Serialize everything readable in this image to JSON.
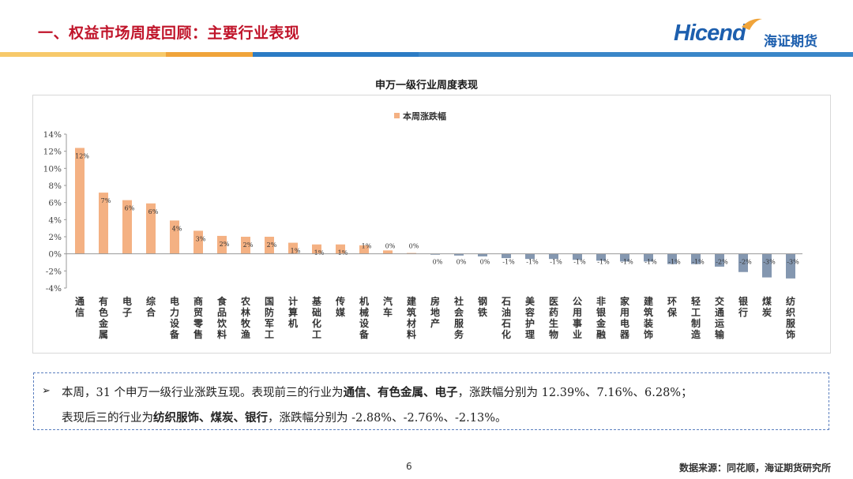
{
  "header": {
    "title": "一、权益市场周度回顾：主要行业表现",
    "logo_word": "Hicend",
    "logo_cn": "海证期货"
  },
  "colors": {
    "title_red": "#c0142a",
    "brand_blue": "#1d5fae",
    "bar_positive": "#f4b183",
    "bar_negative": "#8497b0",
    "rule": [
      "#f7c96a",
      "#f0a43a",
      "#2b7bc4",
      "#3a86c8"
    ]
  },
  "chart_data": {
    "type": "bar",
    "title": "申万一级行业周度表现",
    "legend": [
      "本周涨跌幅"
    ],
    "legend_position": "top-center",
    "y_ticks": [
      "14%",
      "12%",
      "10%",
      "8%",
      "6%",
      "4%",
      "2%",
      "0%",
      "-2%",
      "-4%"
    ],
    "ylim": [
      -4,
      14
    ],
    "grid": false,
    "categories": [
      "通信",
      "有色金属",
      "电子",
      "综合",
      "电力设备",
      "商贸零售",
      "食品饮料",
      "农林牧渔",
      "国防军工",
      "计算机",
      "基础化工",
      "传媒",
      "机械设备",
      "汽车",
      "建筑材料",
      "房地产",
      "社会服务",
      "钢铁",
      "石油石化",
      "美容护理",
      "医药生物",
      "公用事业",
      "非银金融",
      "家用电器",
      "建筑装饰",
      "环保",
      "轻工制造",
      "交通运输",
      "银行",
      "煤炭",
      "纺织服饰"
    ],
    "values": [
      12.39,
      7.16,
      6.28,
      5.9,
      3.9,
      2.7,
      2.1,
      2.0,
      2.0,
      1.3,
      1.1,
      1.1,
      1.0,
      0.4,
      0.1,
      -0.1,
      -0.2,
      -0.3,
      -0.5,
      -0.6,
      -0.6,
      -0.7,
      -0.8,
      -0.9,
      -0.9,
      -1.2,
      -1.2,
      -1.5,
      -2.13,
      -2.76,
      -2.88
    ],
    "data_labels": [
      "12%",
      "7%",
      "6%",
      "6%",
      "4%",
      "3%",
      "2%",
      "2%",
      "2%",
      "1%",
      "1%",
      "1%",
      "1%",
      "0%",
      "0%",
      "0%",
      "0%",
      "0%",
      "-1%",
      "-1%",
      "-1%",
      "-1%",
      "-1%",
      "-1%",
      "-1%",
      "-1%",
      "-1%",
      "-2%",
      "-2%",
      "-3%",
      "-3%"
    ],
    "series": [
      {
        "name": "本周涨跌幅"
      }
    ]
  },
  "summary": {
    "bullet": "➢",
    "line1_a": "本周，31 个申万一级行业涨跌互现。表现前三的行业为",
    "line1_b": "通信、有色金属、电子",
    "line1_c": "，涨跌幅分别为 12.39%、7.16%、6.28%；",
    "line2_a": "表现后三的行业为",
    "line2_b": "纺织服饰、煤炭、银行",
    "line2_c": "，涨跌幅分别为 -2.88%、-2.76%、-2.13%。"
  },
  "footer": {
    "page_number": "6",
    "source": "数据来源：同花顺，海证期货研究所"
  }
}
